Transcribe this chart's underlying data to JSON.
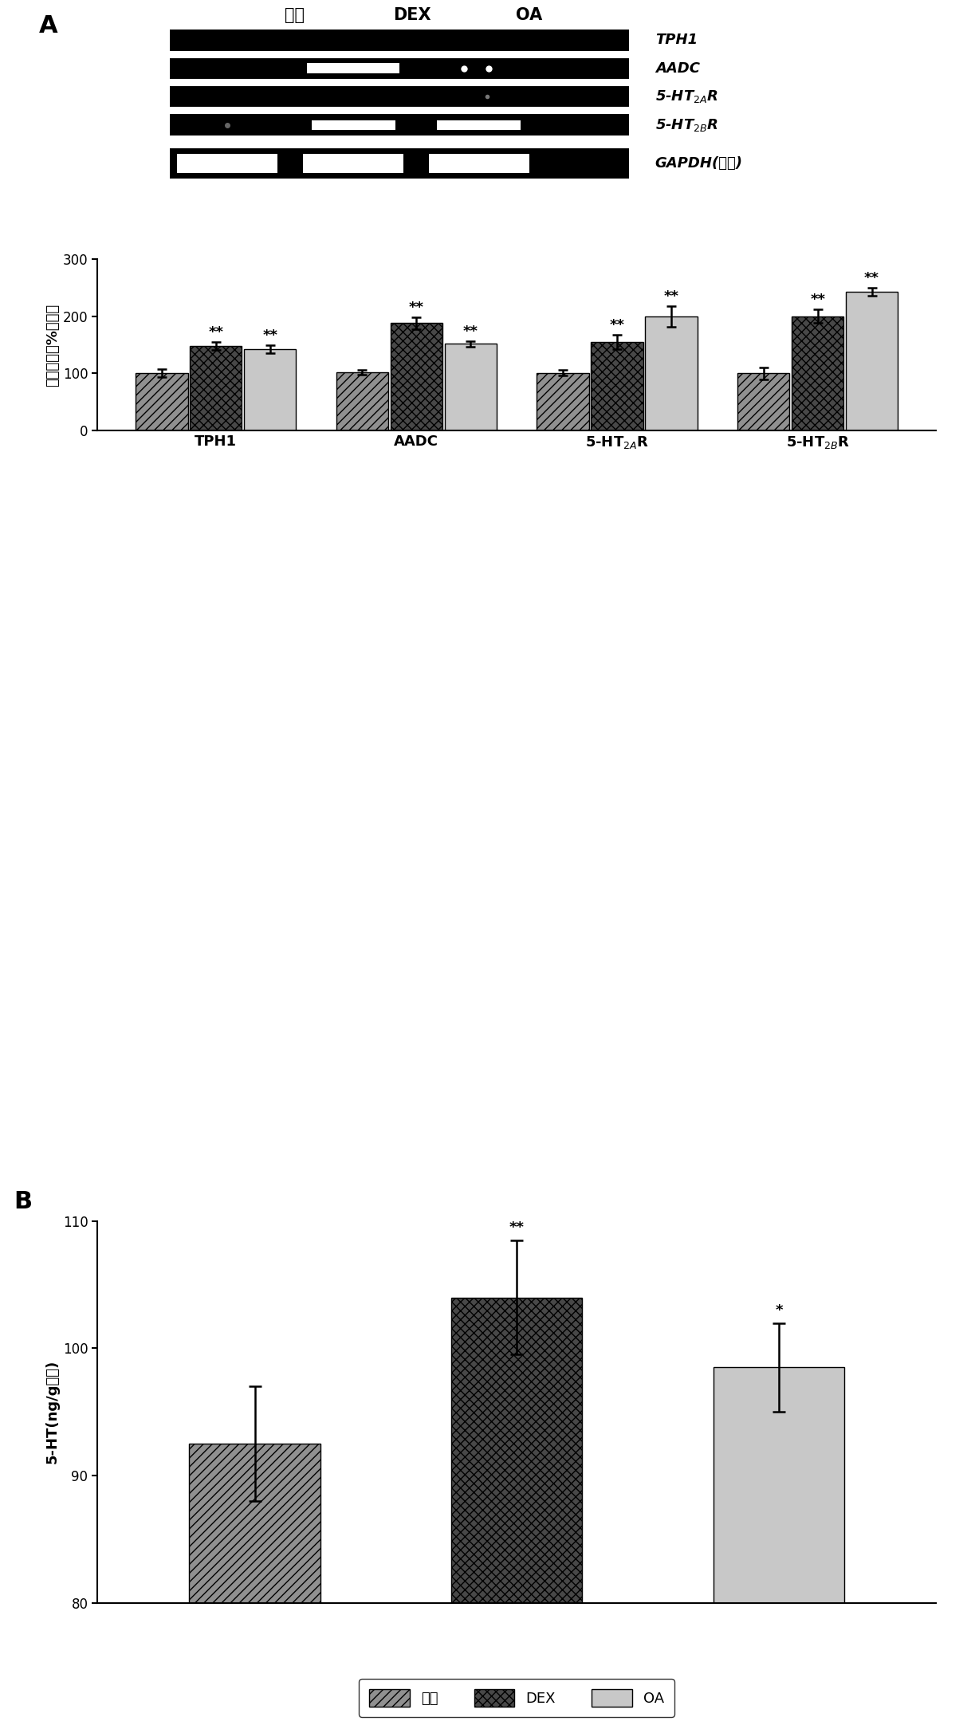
{
  "panel_A_label": "A",
  "panel_B_label": "B",
  "blot_labels_col": [
    "对照",
    "DEX",
    "OA"
  ],
  "bar_categories": [
    "TPH1",
    "AADC",
    "5-HT$_{2A}$R",
    "5-HT$_{2B}$R"
  ],
  "bar_values": {
    "control": [
      100,
      102,
      101,
      100
    ],
    "DEX": [
      148,
      188,
      155,
      200
    ],
    "OA": [
      143,
      152,
      200,
      243
    ]
  },
  "bar_errors": {
    "control": [
      7,
      4,
      5,
      10
    ],
    "DEX": [
      7,
      10,
      13,
      12
    ],
    "OA": [
      7,
      5,
      18,
      7
    ]
  },
  "bar_A_ylabel": "相对含量（%对照）",
  "bar_A_ylim": [
    0,
    300
  ],
  "bar_A_yticks": [
    0,
    100,
    200,
    300
  ],
  "bar_B_ylabel": "5-HT(ng/g蛋白)",
  "bar_B_values": {
    "control": 92.5,
    "DEX": 104.0,
    "OA": 98.5
  },
  "bar_B_errors": {
    "control": 4.5,
    "DEX": 4.5,
    "OA": 3.5
  },
  "bar_B_ylim": [
    80,
    110
  ],
  "bar_B_yticks": [
    80,
    90,
    100,
    110
  ],
  "color_control": "#909090",
  "color_DEX": "#484848",
  "color_OA": "#c8c8c8",
  "hatch_control": "///",
  "hatch_DEX": "xxx",
  "hatch_OA": "===",
  "legend_labels": [
    "对照",
    "DEX",
    "OA"
  ],
  "significance_A_DEX": [
    "**",
    "**",
    "**",
    "**"
  ],
  "significance_A_OA": [
    "**",
    "**",
    "**",
    "**"
  ],
  "significance_B": [
    "",
    "**",
    "*"
  ],
  "background_color": "#ffffff"
}
